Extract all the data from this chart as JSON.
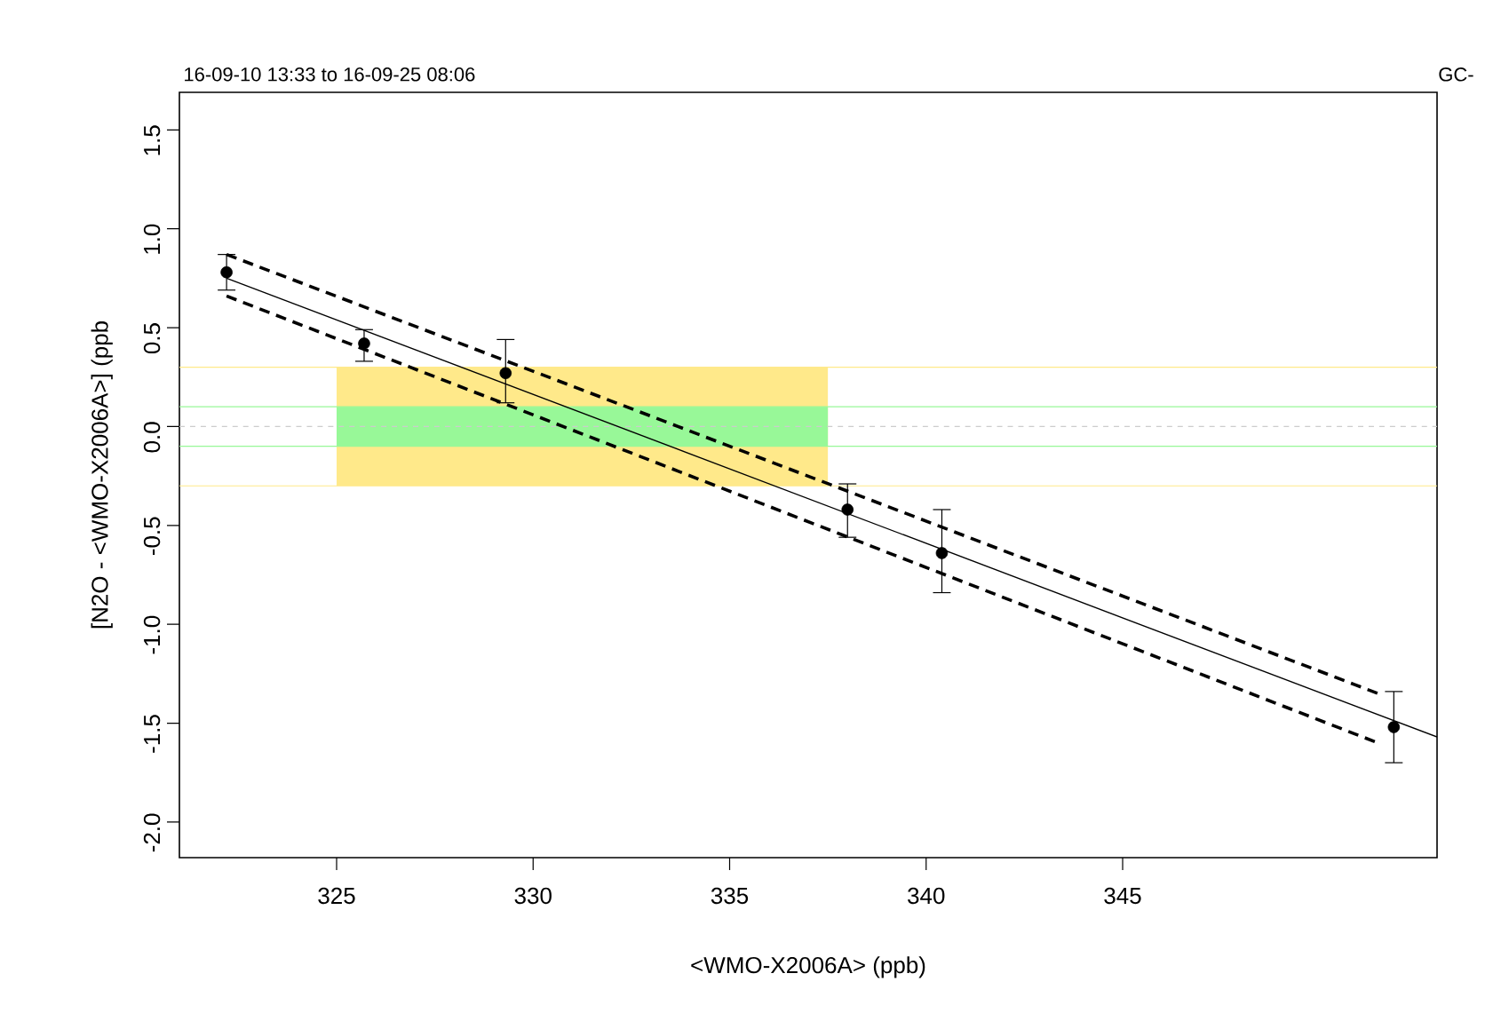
{
  "chart_data": {
    "type": "scatter",
    "title": "16-09-10 13:33 to 16-09-25 08:06",
    "annotations": [
      "GC-"
    ],
    "xlabel": "<WMO-X2006A> (ppb)",
    "ylabel": "[N2O - <WMO-X2006A>] (ppb",
    "xlim": [
      321.0,
      353.0
    ],
    "ylim": [
      -2.18,
      1.69
    ],
    "xticks": [
      325,
      330,
      335,
      340,
      345
    ],
    "yticks": [
      {
        "value": -2.0,
        "label": "-2.0"
      },
      {
        "value": -1.5,
        "label": "-1.5"
      },
      {
        "value": -1.0,
        "label": "-1.0"
      },
      {
        "value": -0.5,
        "label": "-0.5"
      },
      {
        "value": 0.0,
        "label": "0.0"
      },
      {
        "value": 0.5,
        "label": "0.5"
      },
      {
        "value": 1.0,
        "label": "1.0"
      },
      {
        "value": 1.5,
        "label": "1.5"
      }
    ],
    "ref_lines": [
      {
        "axis": "y",
        "value": 0.3,
        "color": "#ffe98a"
      },
      {
        "axis": "y",
        "value": -0.3,
        "color": "#ffe98a"
      },
      {
        "axis": "y",
        "value": 0.1,
        "color": "#98f898"
      },
      {
        "axis": "y",
        "value": -0.1,
        "color": "#98f898"
      },
      {
        "axis": "y",
        "value": 0.0,
        "color": "#cccccc",
        "line_style": "dashed"
      }
    ],
    "marker": "circle",
    "series": [
      {
        "type": "area",
        "color": "#ffe98a",
        "x": [
          325,
          337.5
        ],
        "values": [
          null,
          null
        ],
        "lower": [
          -0.3,
          -0.3
        ],
        "upper": [
          0.3,
          0.3
        ]
      },
      {
        "type": "area",
        "color": "#98f898",
        "x": [
          325,
          337.5
        ],
        "values": [
          null,
          null
        ],
        "lower": [
          -0.1,
          -0.1
        ],
        "upper": [
          0.1,
          0.1
        ]
      },
      {
        "type": "line",
        "color": "#000000",
        "line_style": "solid",
        "marker": "none",
        "x": [
          322.2,
          353.0
        ],
        "values": [
          0.75,
          -1.57
        ]
      },
      {
        "type": "line",
        "color": "#000000",
        "line_style": "dashed",
        "marker": "none",
        "x": [
          322.2,
          329.6,
          351.5
        ],
        "values": [
          0.87,
          0.31,
          -1.35
        ]
      },
      {
        "type": "line",
        "color": "#000000",
        "line_style": "dashed",
        "marker": "none",
        "x": [
          322.2,
          329.6,
          351.5
        ],
        "values": [
          0.66,
          0.09,
          -1.6
        ]
      },
      {
        "color": "#000000",
        "x": [
          322.2,
          325.7,
          329.3,
          338.0,
          340.4,
          351.9
        ],
        "values": [
          0.78,
          0.42,
          0.27,
          -0.42,
          -0.64,
          -1.52
        ],
        "errors": [
          [
            0.69,
            0.87
          ],
          [
            0.33,
            0.49
          ],
          [
            0.12,
            0.44
          ],
          [
            -0.56,
            -0.29
          ],
          [
            -0.84,
            -0.42
          ],
          [
            -1.7,
            -1.34
          ]
        ]
      }
    ]
  }
}
